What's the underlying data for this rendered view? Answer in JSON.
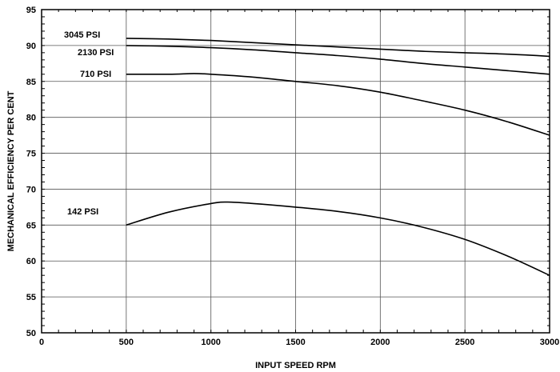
{
  "chart_data": {
    "type": "line",
    "title": "",
    "xlabel": "INPUT SPEED RPM",
    "ylabel": "MECHANICAL EFFICIENCY PER CENT",
    "xlim": [
      0,
      3000
    ],
    "ylim": [
      50,
      95
    ],
    "x_ticks": [
      0,
      500,
      1000,
      1500,
      2000,
      2500,
      3000
    ],
    "y_ticks": [
      50,
      55,
      60,
      65,
      70,
      75,
      80,
      85,
      90,
      95
    ],
    "grid": true,
    "series": [
      {
        "name": "3045 PSI",
        "x": [
          500,
          750,
          1000,
          1250,
          1500,
          1750,
          2000,
          2250,
          2500,
          2750,
          3000
        ],
        "y": [
          91.0,
          90.9,
          90.7,
          90.4,
          90.1,
          89.8,
          89.5,
          89.2,
          89.0,
          88.8,
          88.5
        ]
      },
      {
        "name": "2130 PSI",
        "x": [
          500,
          750,
          1000,
          1250,
          1500,
          1750,
          2000,
          2250,
          2500,
          2750,
          3000
        ],
        "y": [
          90.0,
          89.9,
          89.7,
          89.4,
          89.0,
          88.6,
          88.1,
          87.5,
          87.0,
          86.5,
          86.0
        ]
      },
      {
        "name": "710 PSI",
        "x": [
          500,
          750,
          900,
          1000,
          1250,
          1500,
          1750,
          2000,
          2250,
          2500,
          2750,
          3000
        ],
        "y": [
          86.0,
          86.0,
          86.1,
          86.0,
          85.6,
          85.0,
          84.4,
          83.5,
          82.3,
          81.0,
          79.4,
          77.5
        ]
      },
      {
        "name": "142 PSI",
        "x": [
          500,
          750,
          1000,
          1100,
          1250,
          1500,
          1750,
          2000,
          2250,
          2500,
          2750,
          3000
        ],
        "y": [
          65.0,
          66.8,
          68.0,
          68.2,
          68.0,
          67.5,
          66.9,
          66.0,
          64.7,
          63.0,
          60.7,
          58.0
        ]
      }
    ]
  }
}
